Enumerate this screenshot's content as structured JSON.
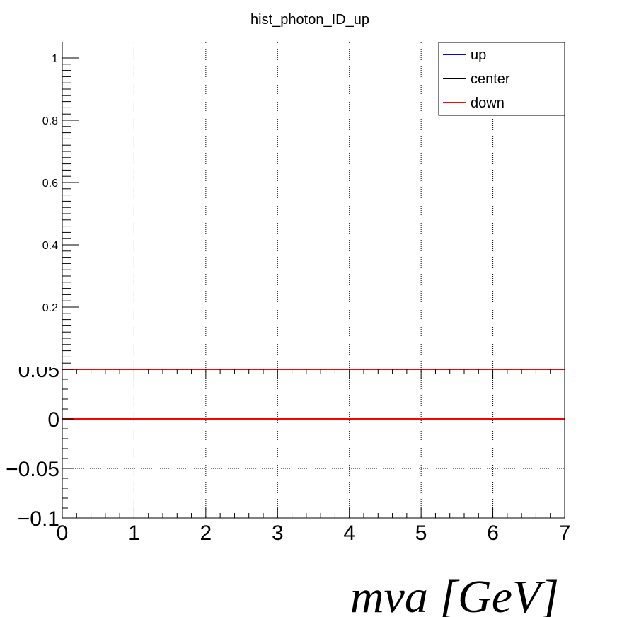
{
  "chart_data": [
    {
      "type": "line",
      "title": "hist_photon_ID_up",
      "xlabel": "",
      "ylabel": "",
      "xlim": [
        0,
        7
      ],
      "ylim": [
        0,
        1.05
      ],
      "y_ticks": [
        0.2,
        0.4,
        0.6,
        0.8,
        1
      ],
      "y_tick_labels": [
        "0.2",
        "0.4",
        "0.6",
        "0.8",
        "1"
      ],
      "grid": {
        "x": true,
        "y": false
      },
      "legend_position": "top-right",
      "series": [
        {
          "name": "up",
          "color": "#0000ff",
          "x": [],
          "y": []
        },
        {
          "name": "center",
          "color": "#000000",
          "x": [],
          "y": []
        },
        {
          "name": "down",
          "color": "#ff0000",
          "x": [],
          "y": []
        }
      ]
    },
    {
      "type": "line",
      "title": "",
      "xlabel": "mva [GeV]",
      "ylabel": "",
      "xlim": [
        0,
        7
      ],
      "ylim": [
        -0.1,
        0.05
      ],
      "x_ticks": [
        0,
        1,
        2,
        3,
        4,
        5,
        6,
        7
      ],
      "x_tick_labels": [
        "0",
        "1",
        "2",
        "3",
        "4",
        "5",
        "6",
        "7"
      ],
      "y_ticks": [
        -0.1,
        -0.05,
        0,
        0.05
      ],
      "y_tick_labels": [
        "−0.1",
        "−0.05",
        "0",
        "0.05"
      ],
      "grid": {
        "x": true,
        "y": true
      },
      "series": [
        {
          "color": "#ff0000",
          "x": [
            0,
            7
          ],
          "y": [
            0,
            0
          ]
        }
      ]
    }
  ]
}
